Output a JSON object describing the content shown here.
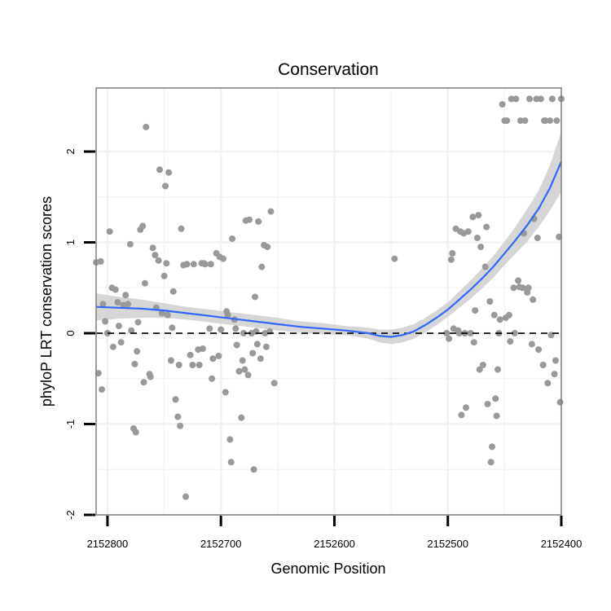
{
  "chart_data": {
    "type": "scatter",
    "title": "Conservation",
    "xlabel": "Genomic Position",
    "ylabel": "phyloP LRT conservation scores",
    "x_reversed": true,
    "xlim": [
      2152810,
      2152400
    ],
    "ylim": [
      -2,
      2.7
    ],
    "x_ticks": [
      2152800,
      2152700,
      2152600,
      2152500,
      2152400
    ],
    "x_tick_labels": [
      "2152800",
      "2152700",
      "2152600",
      "2152500",
      "2152400"
    ],
    "y_ticks": [
      -2,
      -1,
      0,
      1,
      2
    ],
    "y_tick_labels": [
      "-2",
      "-1",
      "0",
      "1",
      "2"
    ],
    "reference_line": {
      "y": 0,
      "style": "dashed",
      "color": "#000000"
    },
    "colors": {
      "points": "#999999",
      "smooth": "#3366ff",
      "ribbon": "#cccccc",
      "grid": "#f2f2f2",
      "frame": "#7f7f7f"
    },
    "points": [
      [
        2152810,
        0.78
      ],
      [
        2152806,
        0.79
      ],
      [
        2152804,
        0.32
      ],
      [
        2152802,
        0.13
      ],
      [
        2152800,
        0.0
      ],
      [
        2152798,
        1.12
      ],
      [
        2152796,
        0.5
      ],
      [
        2152793,
        0.48
      ],
      [
        2152790,
        0.08
      ],
      [
        2152788,
        -0.1
      ],
      [
        2152786,
        0.31
      ],
      [
        2152784,
        0.42
      ],
      [
        2152782,
        0.32
      ],
      [
        2152780,
        0.98
      ],
      [
        2152777,
        -1.05
      ],
      [
        2152775,
        -1.09
      ],
      [
        2152773,
        0.12
      ],
      [
        2152771,
        1.14
      ],
      [
        2152769,
        1.18
      ],
      [
        2152767,
        0.55
      ],
      [
        2152766,
        2.27
      ],
      [
        2152763,
        -0.45
      ],
      [
        2152760,
        0.94
      ],
      [
        2152758,
        0.86
      ],
      [
        2152755,
        0.8
      ],
      [
        2152752,
        0.22
      ],
      [
        2152750,
        0.63
      ],
      [
        2152748,
        0.77
      ],
      [
        2152746,
        1.77
      ],
      [
        2152744,
        -0.3
      ],
      [
        2152742,
        0.46
      ],
      [
        2152740,
        -0.73
      ],
      [
        2152738,
        -0.92
      ],
      [
        2152736,
        -1.02
      ],
      [
        2152733,
        0.75
      ],
      [
        2152730,
        0.76
      ],
      [
        2152727,
        -0.24
      ],
      [
        2152724,
        0.76
      ],
      [
        2152720,
        -0.18
      ],
      [
        2152717,
        0.77
      ],
      [
        2152714,
        0.76
      ],
      [
        2152710,
        0.05
      ],
      [
        2152707,
        -0.28
      ],
      [
        2152704,
        0.88
      ],
      [
        2152701,
        0.84
      ],
      [
        2152698,
        0.82
      ],
      [
        2152695,
        0.24
      ],
      [
        2152692,
        -1.17
      ],
      [
        2152690,
        1.04
      ],
      [
        2152688,
        0.15
      ],
      [
        2152684,
        -0.42
      ],
      [
        2152681,
        -0.3
      ],
      [
        2152678,
        1.24
      ],
      [
        2152675,
        1.25
      ],
      [
        2152672,
        -0.22
      ],
      [
        2152670,
        0.4
      ],
      [
        2152667,
        1.23
      ],
      [
        2152664,
        0.73
      ],
      [
        2152662,
        0.97
      ],
      [
        2152659,
        0.95
      ],
      [
        2152656,
        1.34
      ],
      [
        2152653,
        -0.55
      ],
      [
        2152808,
        -0.44
      ],
      [
        2152805,
        -0.62
      ],
      [
        2152795,
        -0.15
      ],
      [
        2152791,
        0.34
      ],
      [
        2152779,
        0.03
      ],
      [
        2152776,
        -0.34
      ],
      [
        2152774,
        -0.2
      ],
      [
        2152768,
        -0.54
      ],
      [
        2152762,
        -0.48
      ],
      [
        2152757,
        0.28
      ],
      [
        2152754,
        1.8
      ],
      [
        2152749,
        1.62
      ],
      [
        2152743,
        0.06
      ],
      [
        2152737,
        -0.35
      ],
      [
        2152735,
        1.15
      ],
      [
        2152731,
        -1.8
      ],
      [
        2152725,
        -0.35
      ],
      [
        2152719,
        -0.35
      ],
      [
        2152716,
        -0.17
      ],
      [
        2152708,
        -0.5
      ],
      [
        2152702,
        -0.25
      ],
      [
        2152696,
        -0.65
      ],
      [
        2152691,
        -1.42
      ],
      [
        2152686,
        -0.13
      ],
      [
        2152682,
        -0.93
      ],
      [
        2152679,
        -0.4
      ],
      [
        2152676,
        -0.46
      ],
      [
        2152671,
        -1.5
      ],
      [
        2152668,
        -0.12
      ],
      [
        2152665,
        -0.28
      ],
      [
        2152660,
        -0.15
      ],
      [
        2152657,
        0.02
      ],
      [
        2152747,
        0.2
      ],
      [
        2152715,
        0.77
      ],
      [
        2152709,
        0.76
      ],
      [
        2152700,
        0.04
      ],
      [
        2152694,
        0.2
      ],
      [
        2152687,
        0.05
      ],
      [
        2152680,
        0.0
      ],
      [
        2152673,
        0.0
      ],
      [
        2152669,
        0.02
      ],
      [
        2152661,
        0.0
      ],
      [
        2152547,
        0.82
      ],
      [
        2152497,
        0.81
      ],
      [
        2152495,
        0.05
      ],
      [
        2152493,
        1.15
      ],
      [
        2152491,
        0.03
      ],
      [
        2152489,
        1.12
      ],
      [
        2152488,
        -0.9
      ],
      [
        2152486,
        1.1
      ],
      [
        2152484,
        -0.82
      ],
      [
        2152482,
        1.12
      ],
      [
        2152480,
        0.0
      ],
      [
        2152478,
        1.28
      ],
      [
        2152476,
        0.25
      ],
      [
        2152474,
        1.05
      ],
      [
        2152472,
        -0.4
      ],
      [
        2152471,
        0.95
      ],
      [
        2152469,
        -0.35
      ],
      [
        2152467,
        0.73
      ],
      [
        2152465,
        -0.78
      ],
      [
        2152463,
        0.35
      ],
      [
        2152461,
        -1.25
      ],
      [
        2152459,
        0.2
      ],
      [
        2152458,
        -0.72
      ],
      [
        2152456,
        -0.4
      ],
      [
        2152454,
        0.15
      ],
      [
        2152452,
        2.52
      ],
      [
        2152450,
        2.34
      ],
      [
        2152448,
        2.34
      ],
      [
        2152446,
        0.2
      ],
      [
        2152444,
        2.58
      ],
      [
        2152442,
        0.5
      ],
      [
        2152440,
        2.58
      ],
      [
        2152438,
        0.58
      ],
      [
        2152436,
        2.34
      ],
      [
        2152434,
        0.5
      ],
      [
        2152432,
        2.34
      ],
      [
        2152430,
        0.45
      ],
      [
        2152428,
        2.58
      ],
      [
        2152426,
        -0.12
      ],
      [
        2152424,
        1.26
      ],
      [
        2152422,
        2.58
      ],
      [
        2152420,
        -0.18
      ],
      [
        2152418,
        2.58
      ],
      [
        2152416,
        -0.35
      ],
      [
        2152414,
        2.34
      ],
      [
        2152412,
        -0.55
      ],
      [
        2152410,
        2.34
      ],
      [
        2152408,
        2.58
      ],
      [
        2152406,
        -0.45
      ],
      [
        2152404,
        2.34
      ],
      [
        2152402,
        1.06
      ],
      [
        2152400,
        2.58
      ],
      [
        2152501,
        0.0
      ],
      [
        2152499,
        -0.06
      ],
      [
        2152496,
        0.88
      ],
      [
        2152490,
        0.0
      ],
      [
        2152485,
        0.0
      ],
      [
        2152477,
        -0.1
      ],
      [
        2152473,
        1.3
      ],
      [
        2152466,
        1.17
      ],
      [
        2152462,
        -1.42
      ],
      [
        2152457,
        -0.91
      ],
      [
        2152455,
        0.0
      ],
      [
        2152449,
        0.17
      ],
      [
        2152445,
        -0.09
      ],
      [
        2152441,
        0.0
      ],
      [
        2152437,
        0.51
      ],
      [
        2152433,
        1.1
      ],
      [
        2152429,
        0.5
      ],
      [
        2152425,
        0.37
      ],
      [
        2152421,
        1.05
      ],
      [
        2152415,
        2.34
      ],
      [
        2152409,
        -0.02
      ],
      [
        2152405,
        -0.3
      ],
      [
        2152401,
        -0.76
      ]
    ],
    "smooth": {
      "x": [
        2152810,
        2152790,
        2152770,
        2152750,
        2152730,
        2152710,
        2152690,
        2152670,
        2152650,
        2152630,
        2152610,
        2152590,
        2152570,
        2152560,
        2152550,
        2152540,
        2152530,
        2152520,
        2152510,
        2152500,
        2152490,
        2152480,
        2152470,
        2152460,
        2152450,
        2152440,
        2152430,
        2152420,
        2152410,
        2152400
      ],
      "y": [
        0.29,
        0.28,
        0.27,
        0.25,
        0.22,
        0.19,
        0.16,
        0.13,
        0.1,
        0.07,
        0.05,
        0.03,
        0.0,
        -0.03,
        -0.04,
        -0.02,
        0.02,
        0.09,
        0.17,
        0.26,
        0.37,
        0.48,
        0.6,
        0.73,
        0.88,
        1.03,
        1.19,
        1.37,
        1.6,
        1.89
      ],
      "band_halfwidth": [
        0.15,
        0.12,
        0.1,
        0.08,
        0.07,
        0.07,
        0.07,
        0.07,
        0.07,
        0.06,
        0.06,
        0.05,
        0.06,
        0.07,
        0.08,
        0.08,
        0.08,
        0.08,
        0.08,
        0.08,
        0.09,
        0.1,
        0.11,
        0.12,
        0.13,
        0.15,
        0.18,
        0.2,
        0.25,
        0.33
      ]
    }
  }
}
